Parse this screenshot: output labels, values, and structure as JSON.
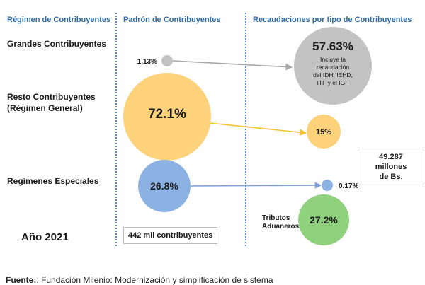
{
  "headers": {
    "regimen": "Régimen de Contribuyentes",
    "padron": "Padrón de Contribuyentes",
    "recaudaciones": "Recaudaciones por tipo de Contribuyentes"
  },
  "rows": {
    "grandes": "Grandes Contribuyentes",
    "resto_line1": "Resto Contribuyentes",
    "resto_line2": "(Régimen General)",
    "especiales": "Regímenes Especiales"
  },
  "year": "Año 2021",
  "padron_total": "442 mil contribuyentes",
  "recaudacion_total_line1": "49.287 millones",
  "recaudacion_total_line2": "de Bs.",
  "tributos_line1": "Tributos",
  "tributos_line2": "Aduaneros",
  "footer": {
    "label": "Fuente:",
    "text": ": Fundación Milenio: Modernización y simplificación de sistema"
  },
  "chart_data": {
    "type": "bubble",
    "series": [
      {
        "name": "Padrón de Contribuyentes",
        "points": [
          {
            "category": "Grandes Contribuyentes",
            "value": 1.13,
            "label": "1.13%"
          },
          {
            "category": "Resto Contribuyentes (Régimen General)",
            "value": 72.1,
            "label": "72.1%"
          },
          {
            "category": "Regímenes Especiales",
            "value": 26.8,
            "label": "26.8%"
          }
        ]
      },
      {
        "name": "Recaudaciones por tipo de Contribuyentes",
        "points": [
          {
            "category": "Grandes Contribuyentes",
            "value": 57.63,
            "label": "57.63%",
            "note": [
              "Incluye la",
              "recaudación",
              "del IDH, IEHD,",
              "ITF y el IGF"
            ]
          },
          {
            "category": "Resto Contribuyentes (Régimen General)",
            "value": 15,
            "label": "15%"
          },
          {
            "category": "Regímenes Especiales",
            "value": 0.17,
            "label": "0.17%"
          },
          {
            "category": "Tributos Aduaneros",
            "value": 27.2,
            "label": "27.2%"
          }
        ]
      }
    ],
    "colors": {
      "grandes": "#c3c3c3",
      "resto": "#fdd27a",
      "especiales": "#8cb2e4",
      "aduaneros": "#8fd17c",
      "arrow_grandes": "#a9a9a9",
      "arrow_resto": "#f2c12e",
      "arrow_especiales": "#7f9fd8"
    }
  }
}
